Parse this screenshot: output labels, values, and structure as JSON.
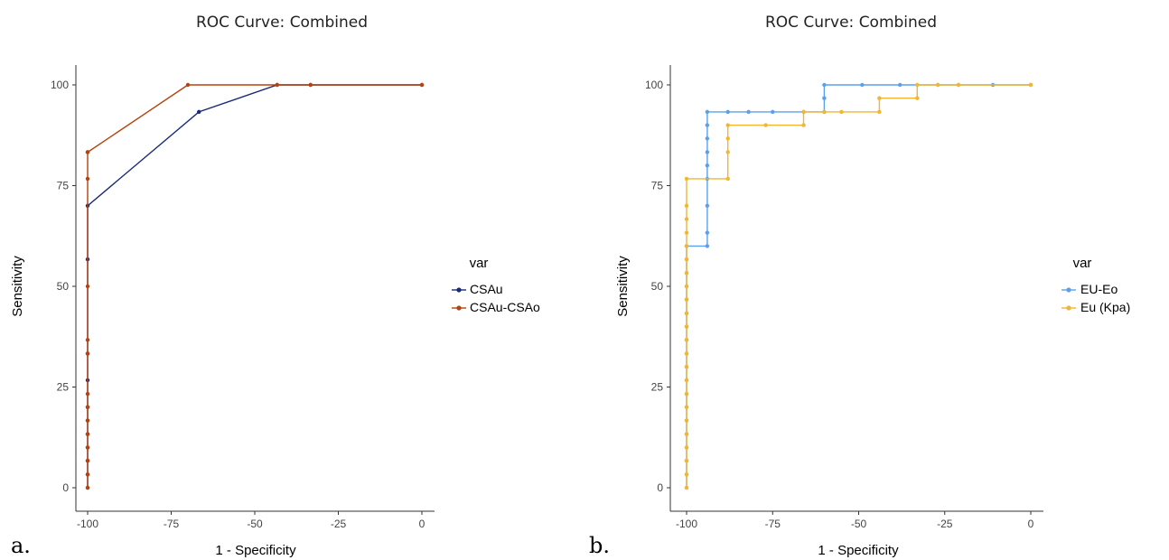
{
  "chart_data": [
    {
      "type": "line",
      "panel_label": "a.",
      "title": "ROC Curve: Combined",
      "xlabel": "1 - Specificity",
      "ylabel": "Sensitivity",
      "xlim": [
        -100,
        0
      ],
      "ylim": [
        0,
        100
      ],
      "xticks": [
        -100,
        -75,
        -50,
        -25,
        0
      ],
      "yticks": [
        0,
        25,
        50,
        75,
        100
      ],
      "grid": false,
      "legend": {
        "title": "var",
        "position": "right"
      },
      "series": [
        {
          "name": "CSAu",
          "color": "#1a2a7a",
          "x": [
            -100,
            -100,
            -100,
            -100,
            -100,
            -100,
            -100,
            -100,
            -100,
            -100,
            -100,
            -66.7,
            -43.3,
            -33.3,
            0
          ],
          "y": [
            0,
            3.3,
            6.7,
            10,
            13.3,
            16.7,
            20,
            26.7,
            33.3,
            56.7,
            70,
            93.3,
            100,
            100,
            100
          ]
        },
        {
          "name": "CSAu-CSAo",
          "color": "#b5420f",
          "x": [
            -100,
            -100,
            -100,
            -100,
            -100,
            -100,
            -100,
            -100,
            -100,
            -100,
            -100,
            -100,
            -100,
            -100,
            -70,
            -43.3,
            -33.3,
            0
          ],
          "y": [
            0,
            3.3,
            6.7,
            10,
            13.3,
            16.7,
            20,
            23.3,
            33.3,
            36.7,
            50,
            76.7,
            83.3,
            83.3,
            100,
            100,
            100,
            100
          ]
        }
      ]
    },
    {
      "type": "line",
      "panel_label": "b.",
      "title": "ROC Curve: Combined",
      "xlabel": "1 - Specificity",
      "ylabel": "Sensitivity",
      "xlim": [
        -100,
        0
      ],
      "ylim": [
        0,
        100
      ],
      "xticks": [
        -100,
        -75,
        -50,
        -25,
        0
      ],
      "yticks": [
        0,
        25,
        50,
        75,
        100
      ],
      "grid": false,
      "legend": {
        "title": "var",
        "position": "right"
      },
      "series": [
        {
          "name": "EU-Eo",
          "color": "#5aa0ee",
          "x": [
            -100,
            -100,
            -100,
            -100,
            -100,
            -100,
            -100,
            -100,
            -100,
            -100,
            -100,
            -100,
            -100,
            -100,
            -100,
            -100,
            -100,
            -100,
            -100,
            -94,
            -94,
            -94,
            -94,
            -94,
            -94,
            -94,
            -94,
            -94,
            -88,
            -82,
            -75,
            -66,
            -60,
            -60,
            -60,
            -49,
            -38,
            -27,
            -21,
            -11,
            0
          ],
          "y": [
            0,
            3.3,
            6.7,
            10,
            13.3,
            16.7,
            20,
            23.3,
            26.7,
            30,
            33.3,
            36.7,
            40,
            43.3,
            46.7,
            50,
            53.3,
            56.7,
            60,
            60,
            63.3,
            70,
            76.7,
            80,
            83.3,
            86.7,
            90,
            93.3,
            93.3,
            93.3,
            93.3,
            93.3,
            93.3,
            96.7,
            100,
            100,
            100,
            100,
            100,
            100,
            100
          ]
        },
        {
          "name": "Eu (Kpa)",
          "color": "#f2b632",
          "x": [
            -100,
            -100,
            -100,
            -100,
            -100,
            -100,
            -100,
            -100,
            -100,
            -100,
            -100,
            -100,
            -100,
            -100,
            -100,
            -100,
            -100,
            -100,
            -100,
            -100,
            -100,
            -100,
            -100,
            -88,
            -88,
            -88,
            -88,
            -77,
            -66,
            -66,
            -60,
            -55,
            -44,
            -44,
            -33,
            -33,
            -27,
            -21,
            0
          ],
          "y": [
            0,
            3.3,
            6.7,
            10,
            13.3,
            16.7,
            20,
            23.3,
            26.7,
            30,
            33.3,
            36.7,
            40,
            43.3,
            46.7,
            50,
            53.3,
            56.7,
            60,
            63.3,
            66.7,
            70,
            76.7,
            76.7,
            83.3,
            86.7,
            90,
            90,
            90,
            93.3,
            93.3,
            93.3,
            93.3,
            96.7,
            96.7,
            100,
            100,
            100,
            100
          ]
        }
      ]
    }
  ]
}
